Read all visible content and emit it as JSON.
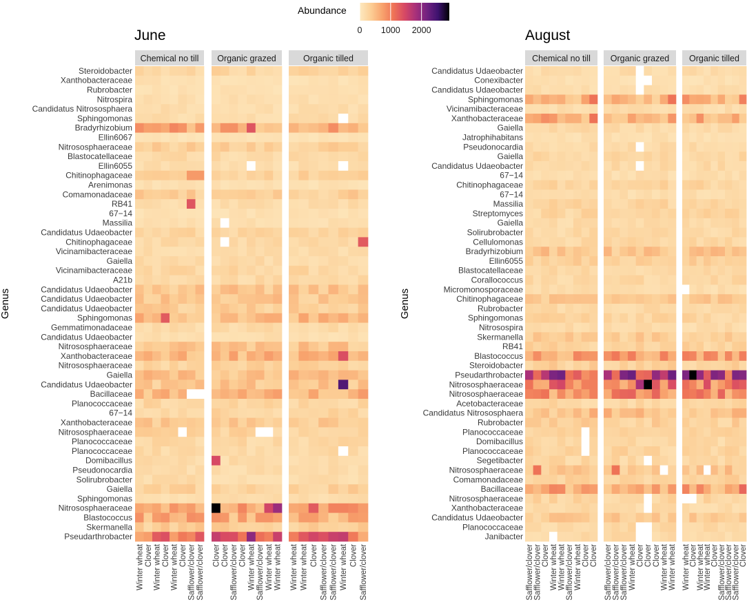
{
  "legend": {
    "title": "Abundance",
    "ticks": [
      0,
      1000,
      2000
    ],
    "range": [
      0,
      2900
    ],
    "colors": [
      "#fde9c0",
      "#fcce95",
      "#f8a46e",
      "#ef7457",
      "#d74964",
      "#a8307a",
      "#722281",
      "#3d126e",
      "#000004"
    ]
  },
  "chart_data": [
    {
      "type": "heatmap",
      "title": "June",
      "ylabel": "Genus",
      "facets": [
        {
          "name": "Chemical no till",
          "columns": [
            "Winter wheat",
            "Clover",
            "Winter wheat",
            "Clover",
            "Winter wheat",
            "Clover",
            "Safflower/clover",
            "Safflower/clover"
          ]
        },
        {
          "name": "Organic grazed",
          "columns": [
            "Clover",
            "Clover",
            "Safflower/clover",
            "Clover",
            "Winter wheat",
            "Safflower/clover",
            "Winter wheat",
            "Winter wheat"
          ]
        },
        {
          "name": "Organic tilled",
          "columns": [
            "Winter wheat",
            "Winter wheat",
            "Clover",
            "Safflower/clover",
            "Safflower/clover",
            "Winter wheat",
            "Clover",
            "Safflower/clover"
          ]
        }
      ],
      "rows": [
        "Steroidobacter",
        "Xanthobacteraceae",
        "Rubrobacter",
        "Nitrospira",
        "Candidatus Nitrososphaera",
        "Sphingomonas",
        "Bradyrhizobium",
        "Ellin6067",
        "Nitrososphaeraceae",
        "Blastocatellaceae",
        "Ellin6055",
        "Chitinophagaceae",
        "Arenimonas",
        "Comamonadaceae",
        "RB41",
        "67−14",
        "Massilia",
        "Candidatus Udaeobacter",
        "Chitinophagaceae",
        "Vicinamibacteraceae",
        "Gaiella",
        "Vicinamibacteraceae",
        "A21b",
        "Candidatus Udaeobacter",
        "Candidatus Udaeobacter",
        "Candidatus Udaeobacter",
        "Sphingomonas",
        "Gemmatimonadaceae",
        "Candidatus Udaeobacter",
        "Nitrososphaeraceae",
        "Xanthobacteraceae",
        "Nitrososphaeraceae",
        "Gaiella",
        "Candidatus Udaeobacter",
        "Bacillaceae",
        "Planococcaceae",
        "67−14",
        "Xanthobacteraceae",
        "Nitrososphaeraceae",
        "Planococcaceae",
        "Planococcaceae",
        "Domibacillus",
        "Pseudonocardia",
        "Solirubrobacter",
        "Gaiella",
        "Sphingomonas",
        "Nitrososphaeraceae",
        "Blastococcus",
        "Skermanella",
        "Pseudarthrobacter"
      ],
      "row_base": [
        250,
        120,
        110,
        140,
        160,
        170,
        650,
        90,
        300,
        200,
        160,
        280,
        120,
        320,
        180,
        120,
        130,
        250,
        200,
        170,
        200,
        240,
        210,
        400,
        400,
        320,
        520,
        190,
        140,
        400,
        520,
        300,
        450,
        380,
        550,
        240,
        260,
        350,
        300,
        220,
        210,
        180,
        170,
        180,
        300,
        170,
        700,
        600,
        330,
        1100
      ],
      "highlights": [
        {
          "facet": 0,
          "row": 14,
          "col": 6,
          "value": 1350
        },
        {
          "facet": 0,
          "row": 11,
          "col": 6,
          "value": 800
        },
        {
          "facet": 0,
          "row": 11,
          "col": 7,
          "value": 800
        },
        {
          "facet": 0,
          "row": 26,
          "col": 3,
          "value": 1300
        },
        {
          "facet": 1,
          "row": 6,
          "col": 4,
          "value": 1350
        },
        {
          "facet": 1,
          "row": 41,
          "col": 0,
          "value": 1450
        },
        {
          "facet": 1,
          "row": 46,
          "col": 0,
          "value": 2900
        },
        {
          "facet": 1,
          "row": 46,
          "col": 6,
          "value": 1500
        },
        {
          "facet": 1,
          "row": 46,
          "col": 7,
          "value": 1900
        },
        {
          "facet": 1,
          "row": 49,
          "col": 4,
          "value": 2000
        },
        {
          "facet": 1,
          "row": 49,
          "col": 0,
          "value": 1600
        },
        {
          "facet": 2,
          "row": 18,
          "col": 7,
          "value": 1300
        },
        {
          "facet": 2,
          "row": 33,
          "col": 5,
          "value": 2400
        },
        {
          "facet": 2,
          "row": 30,
          "col": 5,
          "value": 1400
        },
        {
          "facet": 2,
          "row": 46,
          "col": 2,
          "value": 1300
        },
        {
          "facet": 2,
          "row": 49,
          "col": 2,
          "value": 1500
        }
      ],
      "missing": [
        {
          "facet": 0,
          "row": 34,
          "col": 6
        },
        {
          "facet": 0,
          "row": 34,
          "col": 7
        },
        {
          "facet": 0,
          "row": 38,
          "col": 5
        },
        {
          "facet": 1,
          "row": 16,
          "col": 1
        },
        {
          "facet": 1,
          "row": 10,
          "col": 4
        },
        {
          "facet": 1,
          "row": 18,
          "col": 1
        },
        {
          "facet": 1,
          "row": 38,
          "col": 5
        },
        {
          "facet": 1,
          "row": 38,
          "col": 6
        },
        {
          "facet": 2,
          "row": 5,
          "col": 5
        },
        {
          "facet": 2,
          "row": 10,
          "col": 5
        },
        {
          "facet": 2,
          "row": 40,
          "col": 5
        }
      ]
    },
    {
      "type": "heatmap",
      "title": "August",
      "ylabel": "Genus",
      "facets": [
        {
          "name": "Chemical no till",
          "columns": [
            "Safflower/clover",
            "Safflower/clover",
            "Clover",
            "Winter wheat",
            "Winter wheat",
            "Safflower/clover",
            "Winter wheat",
            "Clover",
            "Clover"
          ]
        },
        {
          "name": "Organic grazed",
          "columns": [
            "Safflower/clover",
            "Safflower/clover",
            "Safflower/clover",
            "Winter wheat",
            "Clover",
            "Clover",
            "Clover",
            "Winter wheat",
            "Winter wheat"
          ]
        },
        {
          "name": "Organic tilled",
          "columns": [
            "Winter wheat",
            "Clover",
            "Winter wheat",
            "Winter wheat",
            "Clover",
            "Safflower/clover",
            "Safflower/clover",
            "Safflower/clover",
            "Clover"
          ]
        }
      ],
      "rows": [
        "Candidatus Udaeobacter",
        "Conexibacter",
        "Candidatus Udaeobacter",
        "Sphingomonas",
        "Vicinamibacteraceae",
        "Xanthobacteraceae",
        "Gaiella",
        "Jatrophihabitans",
        "Pseudonocardia",
        "Gaiella",
        "Candidatus Udaeobacter",
        "67−14",
        "Chitinophagaceae",
        "67−14",
        "Massilia",
        "Streptomyces",
        "Gaiella",
        "Solirubrobacter",
        "Cellulomonas",
        "Bradyrhizobium",
        "Ellin6055",
        "Blastocatellaceae",
        "Corallococcus",
        "Micromonosporaceae",
        "Chitinophagaceae",
        "Rubrobacter",
        "Sphingomonas",
        "Nitrosospira",
        "Skermanella",
        "RB41",
        "Blastococcus",
        "Steroidobacter",
        "Pseudarthrobacter",
        "Nitrososphaeraceae",
        "Nitrososphaeraceae",
        "Acetobacteraceae",
        "Candidatus Nitrososphaera",
        "Rubrobacter",
        "Planococcaceae",
        "Domibacillus",
        "Planococcaceae",
        "Segetibacter",
        "Nitrososphaeraceae",
        "Comamonadaceae",
        "Bacillaceae",
        "Nitrososphaeraceae",
        "Xanthobacteraceae",
        "Candidatus Udaeobacter",
        "Planococcaceae",
        "Janibacter"
      ],
      "row_base": [
        180,
        120,
        150,
        500,
        160,
        600,
        200,
        130,
        200,
        220,
        200,
        150,
        250,
        160,
        250,
        250,
        190,
        210,
        220,
        400,
        300,
        220,
        220,
        170,
        350,
        200,
        260,
        180,
        330,
        280,
        750,
        300,
        1500,
        1000,
        850,
        240,
        450,
        300,
        250,
        210,
        260,
        230,
        400,
        290,
        650,
        260,
        210,
        350,
        220,
        200
      ],
      "highlights": [
        {
          "facet": 0,
          "row": 3,
          "col": 8,
          "value": 1100
        },
        {
          "facet": 0,
          "row": 5,
          "col": 8,
          "value": 1100
        },
        {
          "facet": 1,
          "row": 3,
          "col": 8,
          "value": 1100
        },
        {
          "facet": 2,
          "row": 3,
          "col": 8,
          "value": 1000
        },
        {
          "facet": 2,
          "row": 3,
          "col": 0,
          "value": 900
        },
        {
          "facet": 0,
          "row": 32,
          "col": 0,
          "value": 1800
        },
        {
          "facet": 0,
          "row": 32,
          "col": 2,
          "value": 1700
        },
        {
          "facet": 1,
          "row": 32,
          "col": 0,
          "value": 1800
        },
        {
          "facet": 1,
          "row": 32,
          "col": 2,
          "value": 2100
        },
        {
          "facet": 1,
          "row": 33,
          "col": 5,
          "value": 2900
        },
        {
          "facet": 1,
          "row": 33,
          "col": 4,
          "value": 1800
        },
        {
          "facet": 2,
          "row": 32,
          "col": 1,
          "value": 2900
        },
        {
          "facet": 2,
          "row": 32,
          "col": 0,
          "value": 2100
        },
        {
          "facet": 2,
          "row": 32,
          "col": 5,
          "value": 2000
        },
        {
          "facet": 2,
          "row": 32,
          "col": 7,
          "value": 2100
        },
        {
          "facet": 1,
          "row": 42,
          "col": 1,
          "value": 1100
        },
        {
          "facet": 0,
          "row": 42,
          "col": 1,
          "value": 1100
        },
        {
          "facet": 2,
          "row": 44,
          "col": 8,
          "value": 1200
        }
      ],
      "missing": [
        {
          "facet": 1,
          "row": 0,
          "col": 4
        },
        {
          "facet": 1,
          "row": 1,
          "col": 4
        },
        {
          "facet": 1,
          "row": 1,
          "col": 5
        },
        {
          "facet": 1,
          "row": 2,
          "col": 4
        },
        {
          "facet": 1,
          "row": 8,
          "col": 4
        },
        {
          "facet": 1,
          "row": 10,
          "col": 4
        },
        {
          "facet": 1,
          "row": 41,
          "col": 5
        },
        {
          "facet": 1,
          "row": 42,
          "col": 7
        },
        {
          "facet": 1,
          "row": 45,
          "col": 5
        },
        {
          "facet": 1,
          "row": 46,
          "col": 5
        },
        {
          "facet": 1,
          "row": 48,
          "col": 4
        },
        {
          "facet": 1,
          "row": 48,
          "col": 5
        },
        {
          "facet": 1,
          "row": 49,
          "col": 4
        },
        {
          "facet": 1,
          "row": 49,
          "col": 5
        },
        {
          "facet": 0,
          "row": 38,
          "col": 7
        },
        {
          "facet": 0,
          "row": 39,
          "col": 7
        },
        {
          "facet": 0,
          "row": 40,
          "col": 7
        },
        {
          "facet": 0,
          "row": 49,
          "col": 3
        },
        {
          "facet": 2,
          "row": 42,
          "col": 3
        },
        {
          "facet": 2,
          "row": 45,
          "col": 0
        },
        {
          "facet": 2,
          "row": 45,
          "col": 1
        },
        {
          "facet": 2,
          "row": 23,
          "col": 0
        }
      ]
    }
  ]
}
